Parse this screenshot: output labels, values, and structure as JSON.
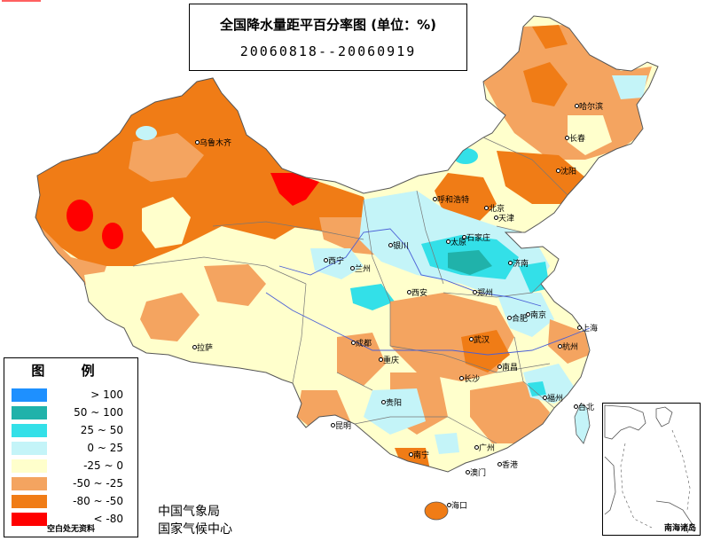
{
  "title": {
    "main": "全国降水量距平百分率图 (单位：%)",
    "period": "20060818--20060919"
  },
  "legend": {
    "heading": "图 例",
    "items": [
      {
        "label": "> 100",
        "color": "#1e90ff"
      },
      {
        "label": "50 ~ 100",
        "color": "#20b2aa"
      },
      {
        "label": "25 ~ 50",
        "color": "#33e0e8"
      },
      {
        "label": "0 ~ 25",
        "color": "#c4f4f8"
      },
      {
        "label": "-25 ~ 0",
        "color": "#ffffcc"
      },
      {
        "label": "-50 ~ -25",
        "color": "#f4a460"
      },
      {
        "label": "-80 ~ -50",
        "color": "#f07c16"
      },
      {
        "label": "< -80",
        "color": "#ff0000"
      }
    ],
    "note": "空白处无资料"
  },
  "agency": {
    "line1": "中国气象局",
    "line2": "国家气候中心"
  },
  "inset": {
    "label": "南海诸岛"
  },
  "cities": [
    {
      "name": "乌鲁木齐"
    },
    {
      "name": "哈尔滨"
    },
    {
      "name": "长春"
    },
    {
      "name": "沈阳"
    },
    {
      "name": "呼和浩特"
    },
    {
      "name": "北京"
    },
    {
      "name": "天津"
    },
    {
      "name": "石家庄"
    },
    {
      "name": "太原"
    },
    {
      "name": "济南"
    },
    {
      "name": "银川"
    },
    {
      "name": "西宁"
    },
    {
      "name": "兰州"
    },
    {
      "name": "西安"
    },
    {
      "name": "郑州"
    },
    {
      "name": "合肥"
    },
    {
      "name": "南京"
    },
    {
      "name": "上海"
    },
    {
      "name": "武汉"
    },
    {
      "name": "杭州"
    },
    {
      "name": "成都"
    },
    {
      "name": "重庆"
    },
    {
      "name": "拉萨"
    },
    {
      "name": "长沙"
    },
    {
      "name": "南昌"
    },
    {
      "name": "福州"
    },
    {
      "name": "贵阳"
    },
    {
      "name": "昆明"
    },
    {
      "name": "南宁"
    },
    {
      "name": "广州"
    },
    {
      "name": "香港"
    },
    {
      "name": "澳门"
    },
    {
      "name": "台北"
    },
    {
      "name": "海口"
    }
  ]
}
